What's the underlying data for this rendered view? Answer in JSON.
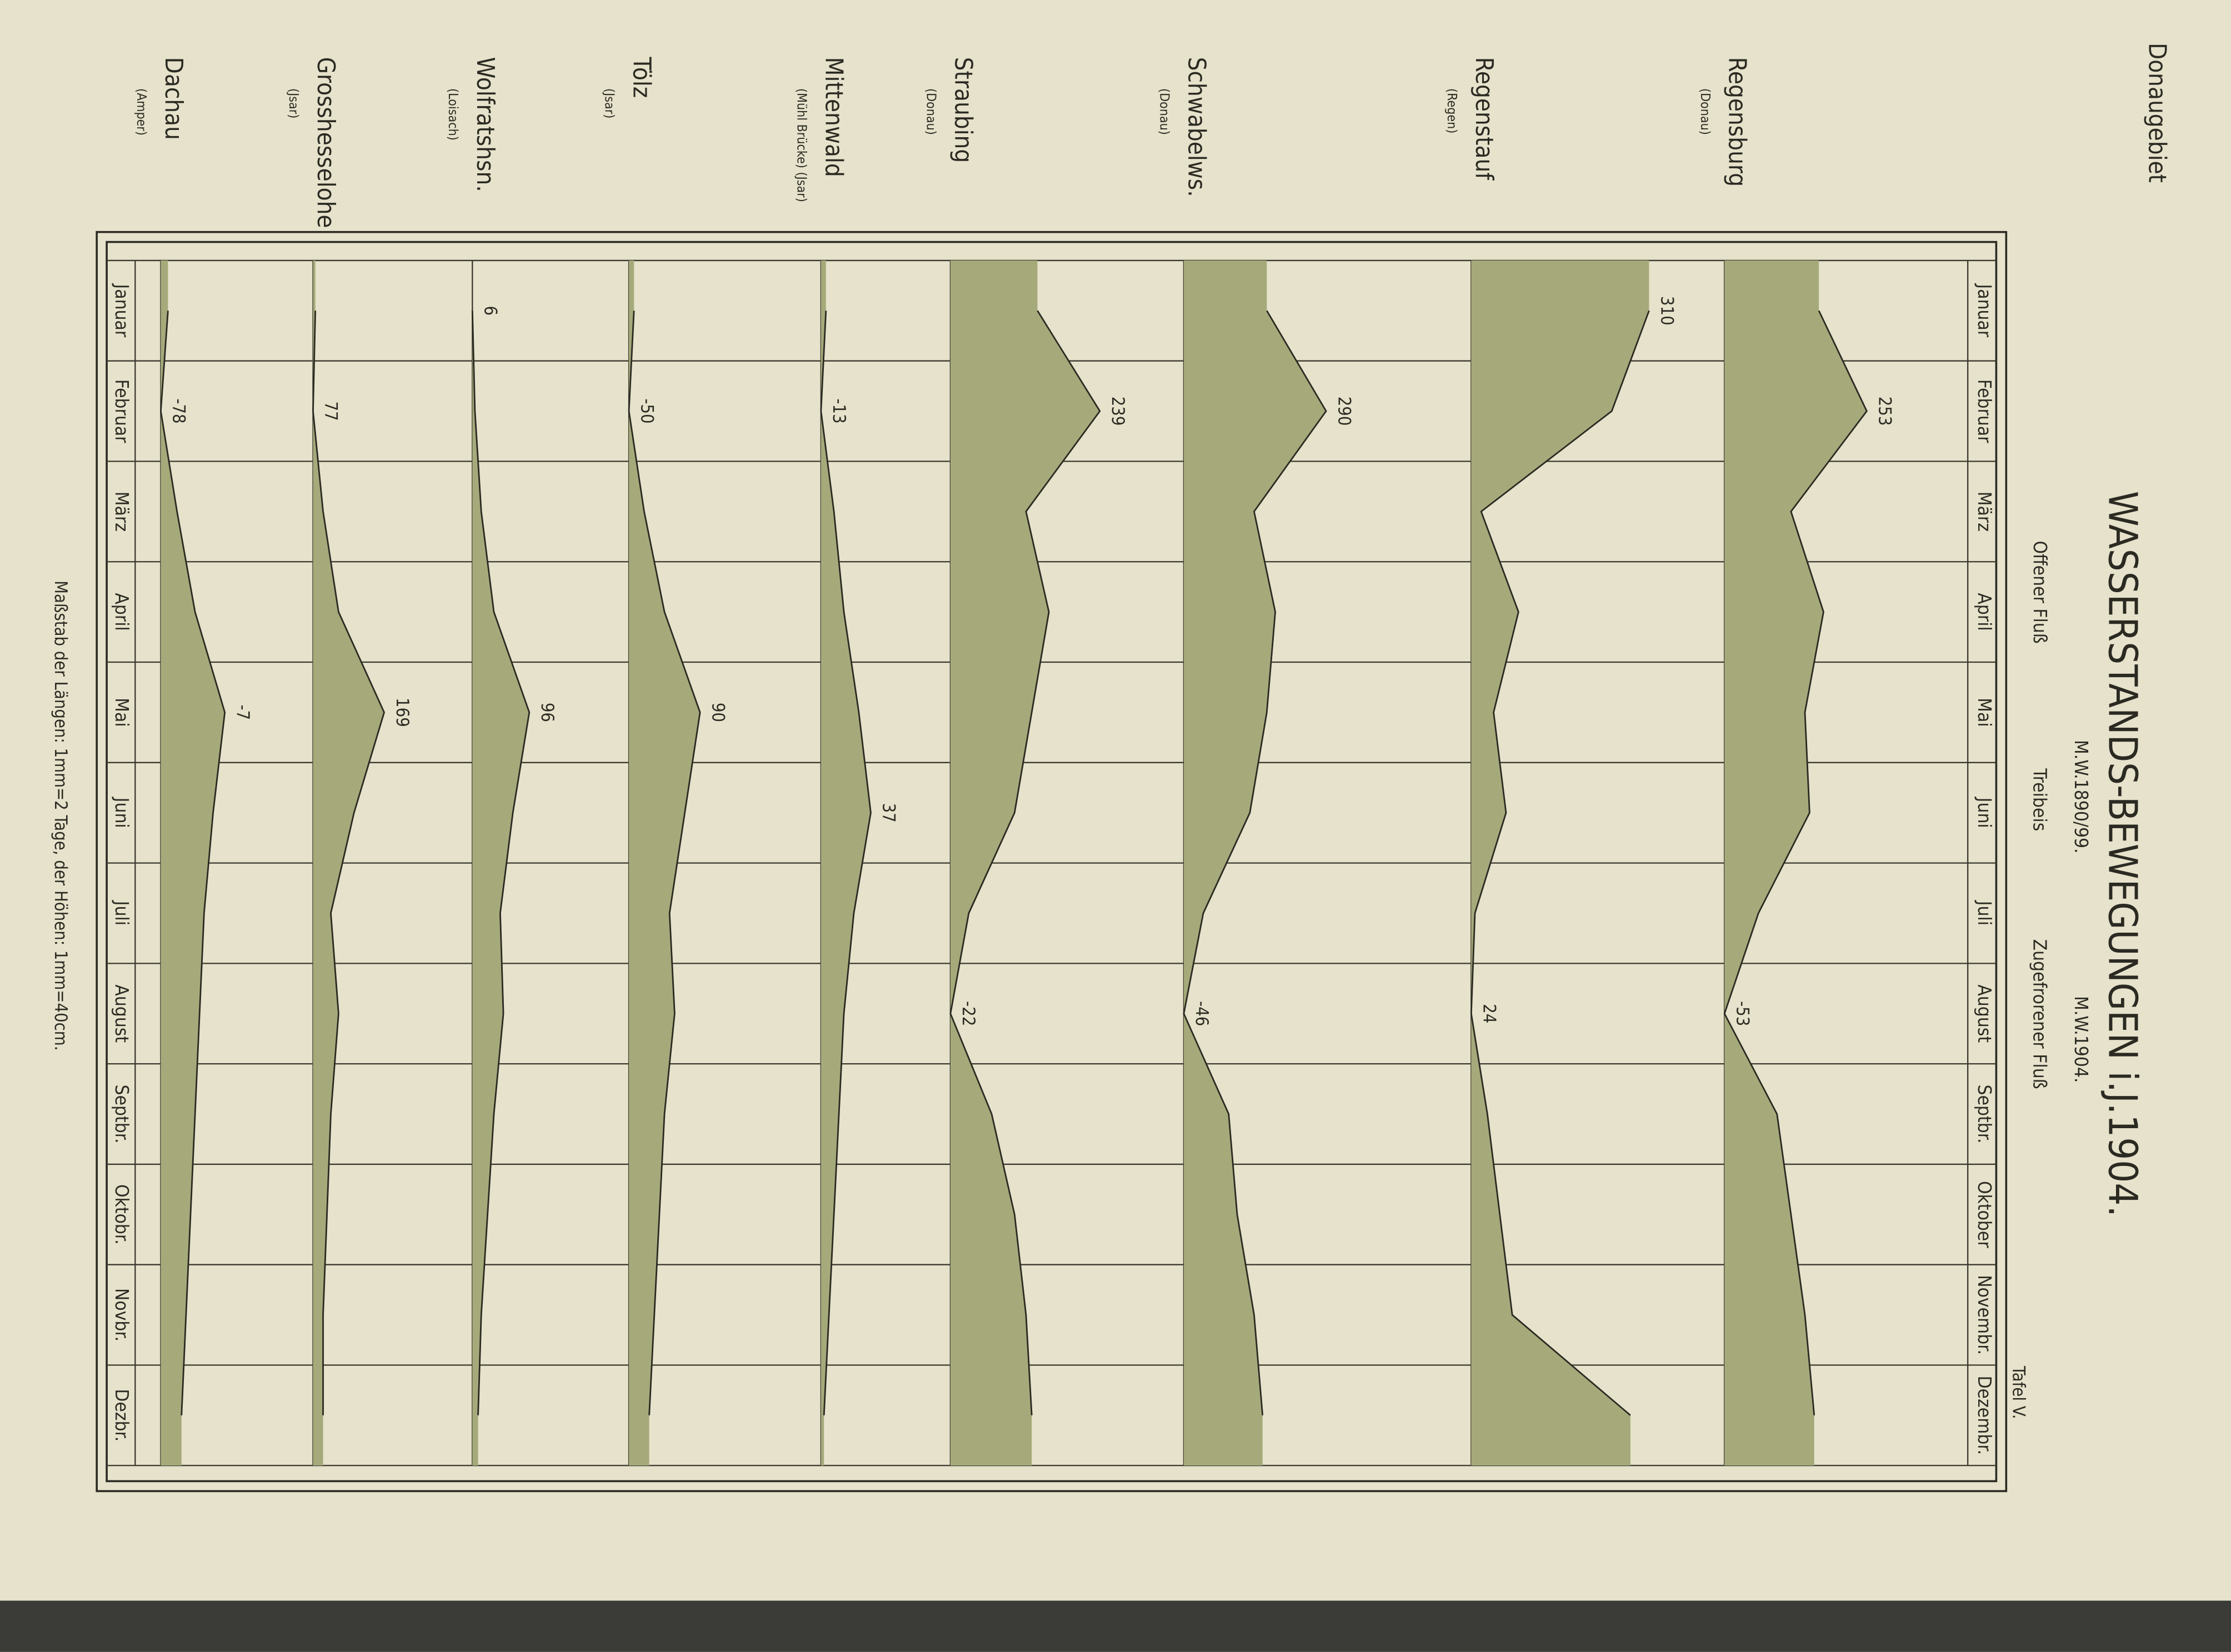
{
  "header": "Donaugebiet",
  "plate": "Tafel V.",
  "footer": "Maßstab der Längen: 1mm=2 Tage, der Höhen: 1mm=40cm.",
  "chart_data": {
    "type": "area",
    "title": "WASSERSTANDS-BEWEGUNGEN i.J.1904.",
    "legend": [
      "M.W.1890/99.",
      "M.W.1904.",
      "Offener Fluß",
      "Treibeis",
      "Zugefrorener Fluß"
    ],
    "categories": [
      "Januar",
      "Februar",
      "März",
      "April",
      "Mai",
      "Juni",
      "Juli",
      "August",
      "Septbr.",
      "Oktober",
      "Novembr.",
      "Dezembr."
    ],
    "categories_alt": [
      "Januar",
      "Februar",
      "März",
      "April",
      "Mai",
      "Juni",
      "Juli",
      "August",
      "Septbr.",
      "Oktobr.",
      "Novbr.",
      "Dezbr."
    ],
    "grid": true,
    "series": [
      {
        "name": "Regensburg",
        "river": "(Donau)",
        "color": "#a6aa7b",
        "values": [
          150,
          253,
          90,
          160,
          120,
          130,
          20,
          -53,
          60,
          90,
          120,
          140
        ]
      },
      {
        "name": "Regenstauf",
        "river": "(Regen)",
        "color": "#a6aa7b",
        "values": [
          310,
          250,
          40,
          100,
          60,
          80,
          30,
          24,
          50,
          70,
          90,
          280
        ]
      },
      {
        "name": "Schwabelws.",
        "river": "(Donau)",
        "color": "#a6aa7b",
        "values": [
          150,
          290,
          120,
          170,
          150,
          110,
          0,
          -46,
          60,
          80,
          120,
          140
        ]
      },
      {
        "name": "Straubing",
        "river": "(Donau)",
        "color": "#a6aa7b",
        "values": [
          130,
          239,
          110,
          150,
          120,
          90,
          10,
          -22,
          50,
          90,
          110,
          120
        ]
      },
      {
        "name": "Mittenwald",
        "river": "(Mühl Brücke) (Jsar)",
        "color": "#a6aa7b",
        "values": [
          -8,
          -13,
          0,
          10,
          25,
          37,
          20,
          10,
          5,
          0,
          -5,
          -10
        ]
      },
      {
        "name": "Tölz",
        "river": "(Jsar)",
        "color": "#a6aa7b",
        "values": [
          -40,
          -50,
          -20,
          20,
          90,
          60,
          30,
          40,
          20,
          10,
          0,
          -10
        ]
      },
      {
        "name": "Wolfratshsn.",
        "river": "(Loisach)",
        "color": "#a6aa7b",
        "values": [
          6,
          10,
          20,
          40,
          96,
          70,
          50,
          55,
          40,
          30,
          20,
          15
        ]
      },
      {
        "name": "Grosshesselohe",
        "river": "(Jsar)",
        "color": "#a6aa7b",
        "values": [
          80,
          77,
          90,
          110,
          169,
          130,
          100,
          110,
          100,
          95,
          90,
          90
        ]
      },
      {
        "name": "Dachau",
        "river": "(Amper)",
        "color": "#a6aa7b",
        "values": [
          -70,
          -78,
          -60,
          -40,
          -7,
          -20,
          -30,
          -35,
          -40,
          -45,
          -50,
          -55
        ]
      }
    ]
  }
}
